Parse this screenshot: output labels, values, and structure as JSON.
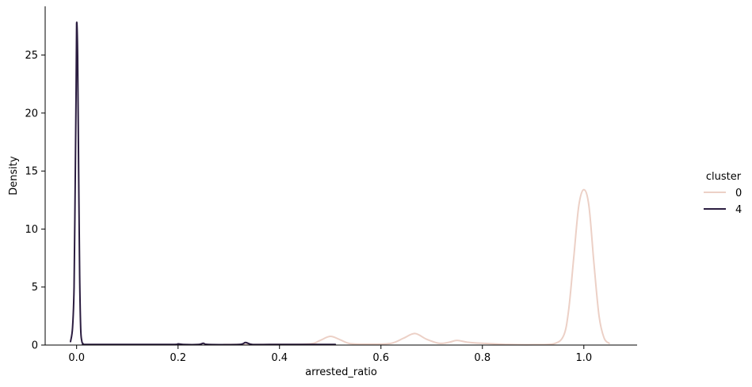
{
  "chart_data": {
    "type": "line",
    "title": "",
    "xlabel": "arrested_ratio",
    "ylabel": "Density",
    "xlim": [
      -0.062,
      1.105
    ],
    "ylim": [
      0,
      29.2
    ],
    "xticks": [
      0.0,
      0.2,
      0.4,
      0.6,
      0.8,
      1.0
    ],
    "xtick_labels": [
      "0.0",
      "0.2",
      "0.4",
      "0.6",
      "0.8",
      "1.0"
    ],
    "yticks": [
      0,
      5,
      10,
      15,
      20,
      25
    ],
    "ytick_labels": [
      "0",
      "5",
      "10",
      "15",
      "20",
      "25"
    ],
    "grid": false,
    "legend": {
      "title": "cluster",
      "placement": "center-right outside"
    },
    "series": [
      {
        "name": "0",
        "color": "#ecd0c6",
        "x": [
          0.29,
          0.4,
          0.46,
          0.48,
          0.5,
          0.52,
          0.54,
          0.58,
          0.62,
          0.645,
          0.667,
          0.69,
          0.715,
          0.735,
          0.75,
          0.77,
          0.8,
          0.85,
          0.9,
          0.94,
          0.96,
          0.97,
          0.98,
          0.99,
          1.0,
          1.01,
          1.02,
          1.03,
          1.04,
          1.05
        ],
        "values": [
          0.05,
          0.05,
          0.1,
          0.4,
          0.75,
          0.45,
          0.12,
          0.08,
          0.15,
          0.6,
          1.0,
          0.5,
          0.15,
          0.25,
          0.4,
          0.25,
          0.15,
          0.05,
          0.03,
          0.1,
          0.8,
          3.0,
          7.5,
          12.0,
          13.4,
          12.0,
          7.0,
          2.5,
          0.6,
          0.15
        ]
      },
      {
        "name": "4",
        "color": "#2b1d40",
        "x": [
          -0.012,
          -0.008,
          -0.005,
          -0.003,
          -0.001,
          0.0,
          0.002,
          0.004,
          0.006,
          0.008,
          0.01,
          0.013,
          0.02,
          0.1,
          0.19,
          0.2,
          0.21,
          0.24,
          0.25,
          0.26,
          0.32,
          0.333,
          0.346,
          0.38,
          0.45,
          0.51
        ],
        "values": [
          0.3,
          1.5,
          5.0,
          13.0,
          22.0,
          27.7,
          25.0,
          15.0,
          6.0,
          1.5,
          0.4,
          0.1,
          0.05,
          0.05,
          0.05,
          0.1,
          0.05,
          0.05,
          0.15,
          0.05,
          0.05,
          0.22,
          0.05,
          0.05,
          0.05,
          0.05
        ]
      }
    ]
  }
}
